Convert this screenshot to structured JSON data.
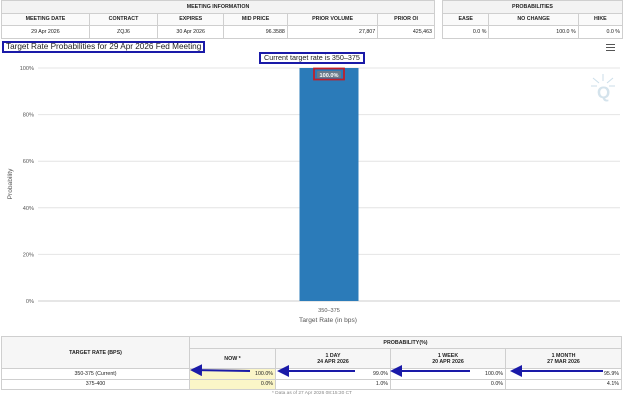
{
  "meeting_info": {
    "header": "MEETING INFORMATION",
    "columns": [
      "MEETING DATE",
      "CONTRACT",
      "EXPIRES",
      "MID PRICE",
      "PRIOR VOLUME",
      "PRIOR OI"
    ],
    "row": [
      "29 Apr 2026",
      "ZQJ6",
      "30 Apr 2026",
      "96.3588",
      "27,807",
      "425,463"
    ]
  },
  "probabilities": {
    "header": "PROBABILITIES",
    "columns": [
      "EASE",
      "NO CHANGE",
      "HIKE"
    ],
    "row": [
      "0.0 %",
      "100.0 %",
      "0.0 %"
    ]
  },
  "chart_title": "Target Rate Probabilities for 29 Apr 2026 Fed Meeting",
  "current_rate_label": "Current target rate is 350–375",
  "menu_icon": "hamburger-menu-icon",
  "logo_letter": "Q",
  "chart_data": {
    "type": "bar",
    "title": "Target Rate Probabilities for 29 Apr 2026 Fed Meeting",
    "categories": [
      "350–375"
    ],
    "values": [
      100.0
    ],
    "data_labels": [
      "100.0%"
    ],
    "xlabel": "Target Rate (in bps)",
    "ylabel": "Probability",
    "ylim": [
      0,
      100
    ],
    "yticks": [
      "0%",
      "20%",
      "40%",
      "60%",
      "80%",
      "100%"
    ],
    "grid": true,
    "bar_color": "#2b7bb9",
    "legend": "none"
  },
  "target_table": {
    "rate_header": "TARGET RATE (BPS)",
    "prob_header": "PROBABILITY(%)",
    "columns": [
      {
        "label": "NOW *",
        "date": ""
      },
      {
        "label": "1 DAY",
        "date": "24 APR 2026"
      },
      {
        "label": "1 WEEK",
        "date": "20 APR 2026"
      },
      {
        "label": "1 MONTH",
        "date": "27 MAR 2026"
      }
    ],
    "rows": [
      {
        "rate": "350-375 (Current)",
        "values": [
          "100.0%",
          "99.0%",
          "100.0%",
          "95.9%"
        ]
      },
      {
        "rate": "375-400",
        "values": [
          "0.0%",
          "1.0%",
          "0.0%",
          "4.1%"
        ]
      }
    ]
  },
  "footnote": "* Data as of 27 Apr 2026 08:15:30 CT",
  "colors": {
    "annotation_blue": "#1a1aa8",
    "label_box_red": "#c0202a",
    "now_highlight": "#fbf6c8"
  }
}
